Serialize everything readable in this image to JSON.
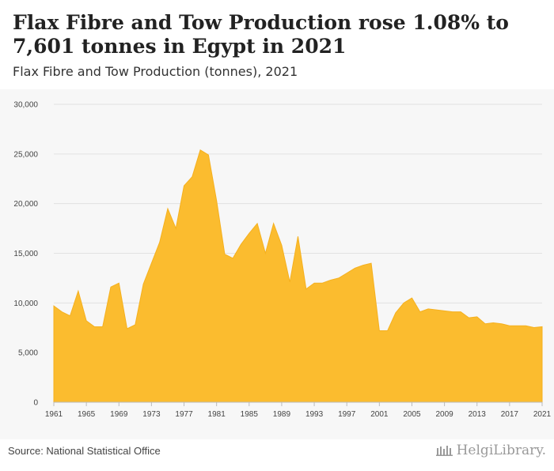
{
  "header": {
    "title": "Flax Fibre and Tow Production rose 1.08% to 7,601 tonnes in Egypt in 2021",
    "subtitle": "Flax Fibre and Tow Production (tonnes), 2021"
  },
  "footer": {
    "source": "Source: National Statistical Office",
    "brand": "HelgiLibrary."
  },
  "colors": {
    "area_fill": "#fbbc2f",
    "area_stroke": "#f5b01e",
    "plot_background": "#f7f7f7",
    "gridline": "#e2e2e2"
  },
  "chart_data": {
    "type": "area",
    "title": "Flax Fibre and Tow Production (tonnes), 2021",
    "xlabel": "",
    "ylabel": "",
    "ylim": [
      0,
      30000
    ],
    "xlim": [
      1961,
      2021
    ],
    "y_ticks": [
      0,
      5000,
      10000,
      15000,
      20000,
      25000,
      30000
    ],
    "y_tick_labels": [
      "0",
      "5,000",
      "10,000",
      "15,000",
      "20,000",
      "25,000",
      "30,000"
    ],
    "x_ticks": [
      1961,
      1965,
      1969,
      1973,
      1977,
      1981,
      1985,
      1989,
      1993,
      1997,
      2001,
      2005,
      2009,
      2013,
      2017,
      2021
    ],
    "grid": "horizontal",
    "series": [
      {
        "x": [
          1961,
          1962,
          1963,
          1964,
          1965,
          1966,
          1967,
          1968,
          1969,
          1970,
          1971,
          1972,
          1973,
          1974,
          1975,
          1976,
          1977,
          1978,
          1979,
          1980,
          1981,
          1982,
          1983,
          1984,
          1985,
          1986,
          1987,
          1988,
          1989,
          1990,
          1991,
          1992,
          1993,
          1994,
          1995,
          1996,
          1997,
          1998,
          1999,
          2000,
          2001,
          2002,
          2003,
          2004,
          2005,
          2006,
          2007,
          2008,
          2009,
          2010,
          2011,
          2012,
          2013,
          2014,
          2015,
          2016,
          2017,
          2018,
          2019,
          2020,
          2021
        ],
        "values": [
          9700,
          9100,
          8700,
          11200,
          8200,
          7600,
          7600,
          11600,
          12000,
          7400,
          7800,
          11900,
          14000,
          16100,
          19500,
          17500,
          21800,
          22700,
          25400,
          24900,
          20300,
          14900,
          14500,
          15900,
          17000,
          18000,
          15000,
          18000,
          15800,
          12100,
          16700,
          11400,
          12000,
          12000,
          12300,
          12500,
          13000,
          13500,
          13800,
          14000,
          7200,
          7200,
          9000,
          10000,
          10500,
          9100,
          9400,
          9300,
          9200,
          9100,
          9100,
          8500,
          8600,
          7900,
          8000,
          7900,
          7700,
          7700,
          7700,
          7520,
          7601
        ]
      }
    ]
  }
}
